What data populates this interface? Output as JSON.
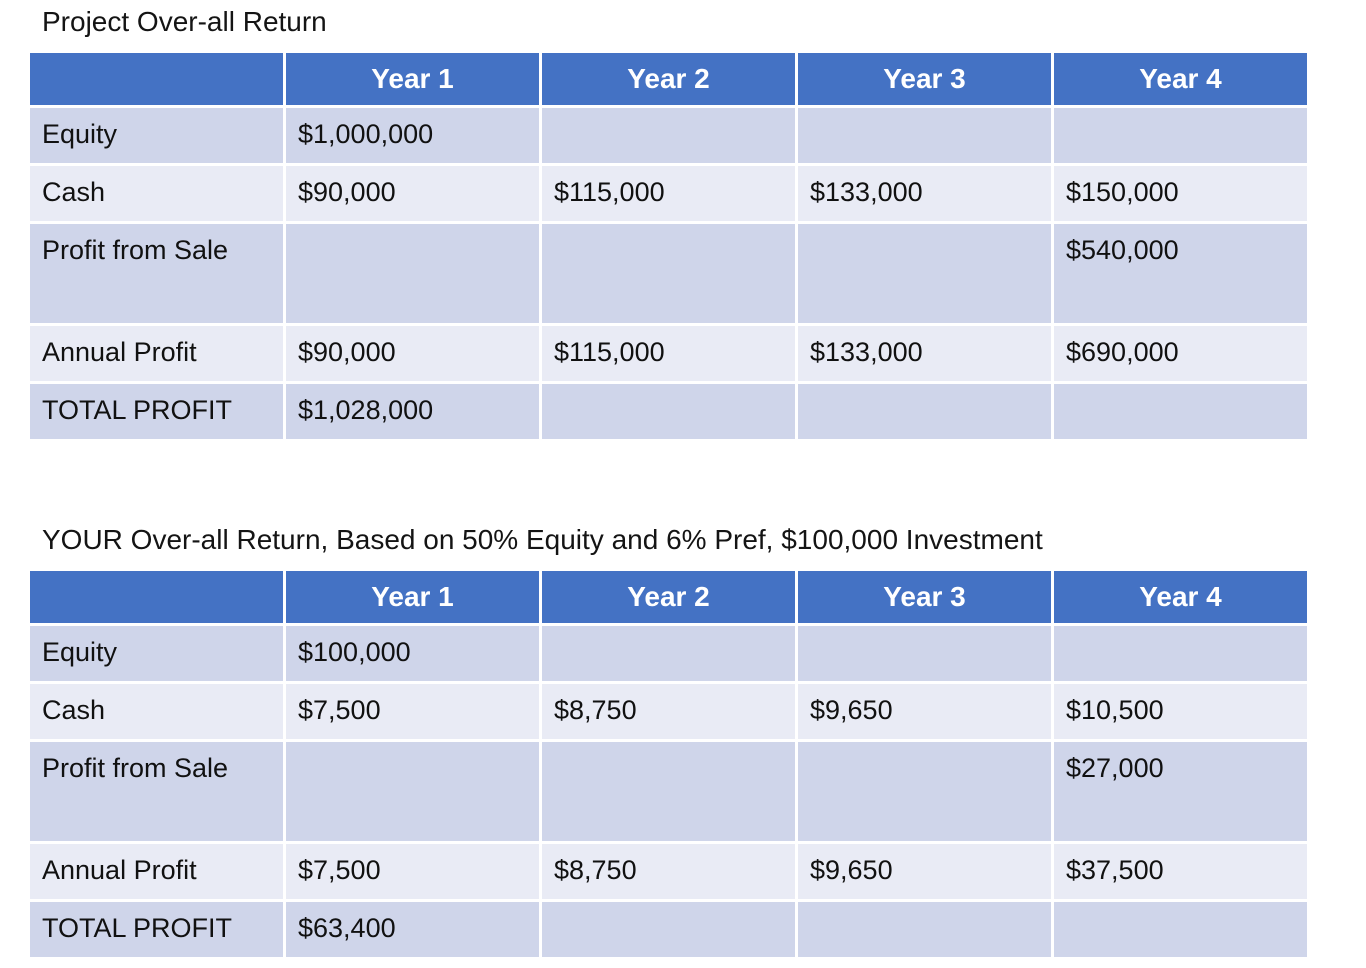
{
  "colors": {
    "header_bg": "#4472C4",
    "header_text": "#FFFFFF",
    "band_dark": "#CFD5EA",
    "band_light": "#E9EBF5",
    "body_text": "#111111",
    "page_background": "#FFFFFF"
  },
  "tables": [
    {
      "title": "Project Over-all Return",
      "columns": [
        "",
        "Year 1",
        "Year 2",
        "Year 3",
        "Year 4"
      ],
      "rows": [
        {
          "label": "Equity",
          "values": [
            "$1,000,000",
            "",
            "",
            ""
          ]
        },
        {
          "label": "Cash",
          "values": [
            "$90,000",
            "$115,000",
            "$133,000",
            "$150,000"
          ]
        },
        {
          "label": "Profit from Sale",
          "values": [
            "",
            "",
            "",
            "$540,000"
          ]
        },
        {
          "label": "Annual Profit",
          "values": [
            "$90,000",
            "$115,000",
            "$133,000",
            "$690,000"
          ]
        },
        {
          "label": "TOTAL PROFIT",
          "values": [
            "$1,028,000",
            "",
            "",
            ""
          ]
        }
      ]
    },
    {
      "title": "YOUR Over-all Return, Based on 50% Equity and 6% Pref, $100,000 Investment",
      "columns": [
        "",
        "Year 1",
        "Year 2",
        "Year 3",
        "Year 4"
      ],
      "rows": [
        {
          "label": "Equity",
          "values": [
            "$100,000",
            "",
            "",
            ""
          ]
        },
        {
          "label": "Cash",
          "values": [
            "$7,500",
            "$8,750",
            "$9,650",
            "$10,500"
          ]
        },
        {
          "label": "Profit from Sale",
          "values": [
            "",
            "",
            "",
            "$27,000"
          ]
        },
        {
          "label": "Annual Profit",
          "values": [
            "$7,500",
            "$8,750",
            "$9,650",
            "$37,500"
          ]
        },
        {
          "label": "TOTAL PROFIT",
          "values": [
            "$63,400",
            "",
            "",
            ""
          ]
        }
      ]
    }
  ]
}
